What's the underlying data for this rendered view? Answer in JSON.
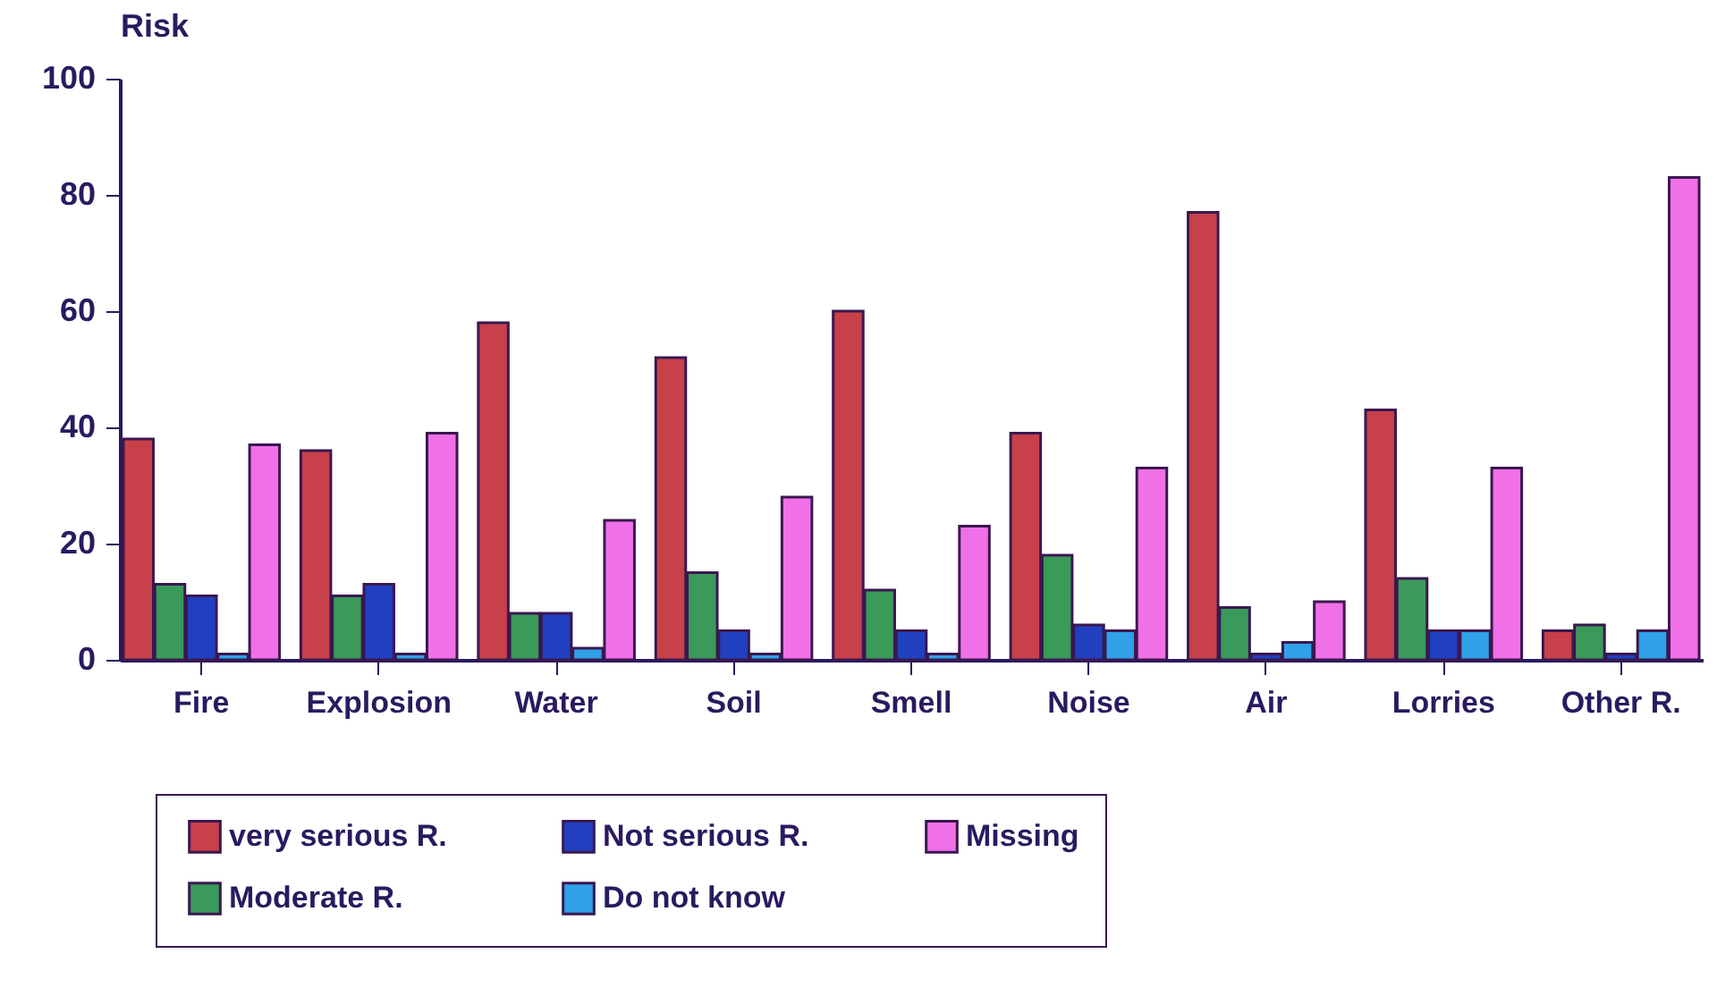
{
  "chart_data": {
    "type": "bar",
    "ylabel": "Risk",
    "categories": [
      "Fire",
      "Explosion",
      "Water",
      "Soil",
      "Smell",
      "Noise",
      "Air",
      "Lorries",
      "Other R."
    ],
    "series": [
      {
        "name": "very serious R.",
        "color": "#c8404a",
        "values": [
          38,
          36,
          58,
          52,
          60,
          39,
          77,
          43,
          5
        ]
      },
      {
        "name": "Moderate R.",
        "color": "#3a9a5a",
        "values": [
          13,
          11,
          8,
          15,
          12,
          18,
          9,
          14,
          6
        ]
      },
      {
        "name": "Not serious R.",
        "color": "#2040c0",
        "values": [
          11,
          13,
          8,
          5,
          5,
          6,
          1,
          5,
          1
        ]
      },
      {
        "name": "Do not know",
        "color": "#30a0e8",
        "values": [
          1,
          1,
          2,
          1,
          1,
          5,
          3,
          5,
          5
        ]
      },
      {
        "name": "Missing",
        "color": "#f070e8",
        "values": [
          37,
          39,
          24,
          28,
          23,
          33,
          10,
          33,
          83
        ]
      }
    ],
    "ylim": [
      0,
      100
    ],
    "yticks": [
      0,
      20,
      40,
      60,
      80,
      100
    ],
    "grid": false,
    "legend": "bottom"
  }
}
